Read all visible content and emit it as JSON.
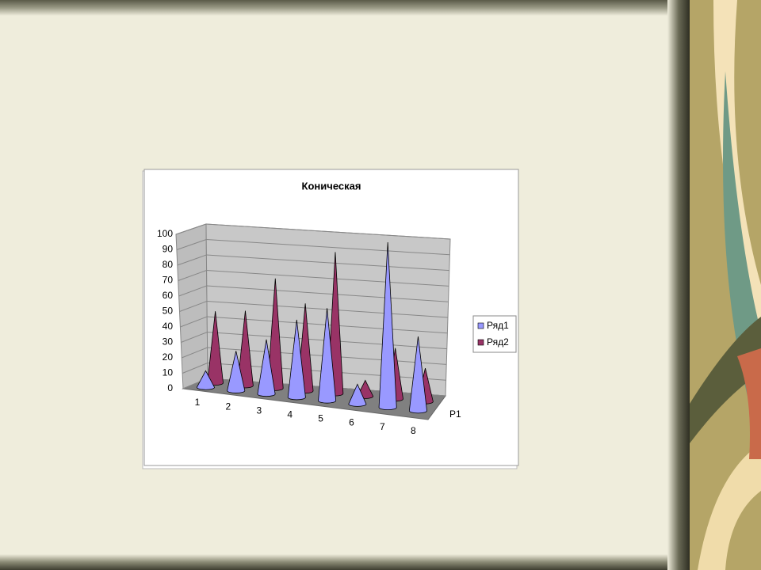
{
  "chart_data": {
    "type": "cone",
    "title": "Коническая",
    "categories": [
      "1",
      "2",
      "3",
      "4",
      "5",
      "6",
      "7",
      "8"
    ],
    "depth_label": "Р1",
    "series": [
      {
        "name": "Ряд1",
        "color": "#9999ff",
        "values": [
          10,
          24,
          33,
          47,
          56,
          12,
          100,
          45
        ]
      },
      {
        "name": "Ряд2",
        "color": "#993366",
        "values": [
          45,
          47,
          69,
          55,
          89,
          10,
          32,
          21
        ]
      }
    ],
    "ylim": [
      0,
      100
    ],
    "yticks": [
      0,
      10,
      20,
      30,
      40,
      50,
      60,
      70,
      80,
      90,
      100
    ],
    "grid": true,
    "legend": "right"
  }
}
